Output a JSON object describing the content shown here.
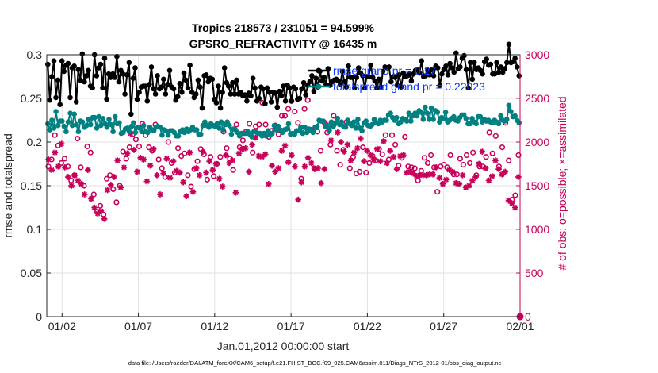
{
  "chart_data": {
    "type": "line",
    "title": "Tropics 218573 / 231051 = 94.599%",
    "subtitle": "GPSRO_REFRACTIVITY @ 16435 m",
    "xlabel": "Jan.01,2012 00:00:00 start",
    "ylabel_left": "rmse and totalspread",
    "ylabel_right": "# of obs: o=possible; ×=assimilated",
    "footer": "data file: /Users/raeder/DAI/ATM_forcXX/CAM6_setup/f.e21.FHIST_BGC.f09_025.CAM6assim.011/Diags_NTrS_2012-01/obs_diag_output.nc",
    "x_ticks": [
      {
        "label": "01/02",
        "value": 1
      },
      {
        "label": "01/07",
        "value": 6
      },
      {
        "label": "01/12",
        "value": 11
      },
      {
        "label": "01/17",
        "value": 16
      },
      {
        "label": "01/22",
        "value": 21
      },
      {
        "label": "01/27",
        "value": 26
      },
      {
        "label": "02/01",
        "value": 31
      }
    ],
    "xlim": [
      0,
      31
    ],
    "y_left_ticks": [
      "0",
      "0.05",
      "0.1",
      "0.15",
      "0.2",
      "0.25",
      "0.3"
    ],
    "y_left_tick_values": [
      0,
      0.05,
      0.1,
      0.15,
      0.2,
      0.25,
      0.3
    ],
    "ylim_left": [
      0,
      0.3
    ],
    "y_right_ticks": [
      "0",
      "500",
      "1000",
      "1500",
      "2000",
      "2500",
      "3000"
    ],
    "y_right_tick_values": [
      0,
      500,
      1000,
      1500,
      2000,
      2500,
      3000
    ],
    "ylim_right": [
      0,
      3000
    ],
    "grid": true,
    "legend": {
      "position": "top-right",
      "entries": [
        "rmse grand pr = 0.27",
        "totalspread grand pr = 0.22023"
      ]
    },
    "colors": {
      "rmse": "#000000",
      "spread": "#008080",
      "obs": "#c8005a",
      "legend_text": "#0a37ff"
    },
    "series": [
      {
        "name": "rmse",
        "axis": "left",
        "values": [
          0.289,
          0.248,
          0.275,
          0.293,
          0.251,
          0.271,
          0.243,
          0.293,
          0.281,
          0.288,
          0.29,
          0.251,
          0.285,
          0.287,
          0.246,
          0.283,
          0.271,
          0.301,
          0.269,
          0.276,
          0.282,
          0.264,
          0.262,
          0.3,
          0.276,
          0.285,
          0.289,
          0.262,
          0.296,
          0.249,
          0.278,
          0.274,
          0.278,
          0.274,
          0.298,
          0.269,
          0.282,
          0.278,
          0.255,
          0.277,
          0.291,
          0.232,
          0.273,
          0.285,
          0.249,
          0.257,
          0.263,
          0.264,
          0.264,
          0.247,
          0.266,
          0.286,
          0.261,
          0.255,
          0.276,
          0.261,
          0.263,
          0.272,
          0.255,
          0.266,
          0.282,
          0.263,
          0.261,
          0.248,
          0.252,
          0.267,
          0.257,
          0.279,
          0.271,
          0.262,
          0.288,
          0.257,
          0.251,
          0.255,
          0.271,
          0.263,
          0.239,
          0.276,
          0.277,
          0.269,
          0.273,
          0.272,
          0.249,
          0.245,
          0.264,
          0.239,
          0.257,
          0.285,
          0.268,
          0.264,
          0.255,
          0.268,
          0.255,
          0.271,
          0.255,
          0.257,
          0.253,
          0.254,
          0.247,
          0.256,
          0.253,
          0.273,
          0.262,
          0.247,
          0.25,
          0.263,
          0.261,
          0.244,
          0.262,
          0.257,
          0.246,
          0.257,
          0.256,
          0.24,
          0.258,
          0.253,
          0.264,
          0.247,
          0.265,
          0.262,
          0.247,
          0.263,
          0.261,
          0.249,
          0.25,
          0.261,
          0.268,
          0.254,
          0.265,
          0.269,
          0.276,
          0.258,
          0.273,
          0.263,
          0.281,
          0.27,
          0.274,
          0.266,
          0.284,
          0.265,
          0.269,
          0.271,
          0.272,
          0.27,
          0.266,
          0.281,
          0.269,
          0.263,
          0.287,
          0.274,
          0.274,
          0.262,
          0.274,
          0.285,
          0.279,
          0.276,
          0.262,
          0.275,
          0.275,
          0.288,
          0.274,
          0.27,
          0.262,
          0.272,
          0.263,
          0.281,
          0.286,
          0.285,
          0.286,
          0.269,
          0.275,
          0.274,
          0.265,
          0.277,
          0.263,
          0.279,
          0.275,
          0.276,
          0.278,
          0.27,
          0.278,
          0.282,
          0.283,
          0.279,
          0.293,
          0.275,
          0.276,
          0.282,
          0.277,
          0.283,
          0.276,
          0.287,
          0.285,
          0.265,
          0.278,
          0.283,
          0.287,
          0.277,
          0.29,
          0.285,
          0.28,
          0.302,
          0.284,
          0.286,
          0.296,
          0.299,
          0.283,
          0.262,
          0.291,
          0.272,
          0.291,
          0.283,
          0.285,
          0.282,
          0.278,
          0.292,
          0.295,
          0.288,
          0.289,
          0.278,
          0.278,
          0.291,
          0.28,
          0.286,
          0.28,
          0.284,
          0.291,
          0.312,
          0.291,
          0.292,
          0.296,
          0.286,
          0.276
        ]
      },
      {
        "name": "totalspread",
        "axis": "left",
        "values": [
          0.221,
          0.214,
          0.225,
          0.216,
          0.235,
          0.219,
          0.224,
          0.224,
          0.218,
          0.212,
          0.223,
          0.233,
          0.219,
          0.232,
          0.22,
          0.212,
          0.224,
          0.223,
          0.217,
          0.219,
          0.226,
          0.22,
          0.228,
          0.228,
          0.216,
          0.229,
          0.219,
          0.227,
          0.221,
          0.217,
          0.226,
          0.22,
          0.212,
          0.229,
          0.221,
          0.222,
          0.21,
          0.211,
          0.215,
          0.216,
          0.212,
          0.218,
          0.222,
          0.211,
          0.217,
          0.216,
          0.212,
          0.219,
          0.212,
          0.211,
          0.217,
          0.214,
          0.213,
          0.217,
          0.218,
          0.217,
          0.208,
          0.214,
          0.213,
          0.208,
          0.213,
          0.213,
          0.211,
          0.207,
          0.207,
          0.212,
          0.214,
          0.211,
          0.215,
          0.212,
          0.214,
          0.217,
          0.214,
          0.214,
          0.209,
          0.209,
          0.219,
          0.223,
          0.219,
          0.217,
          0.221,
          0.219,
          0.218,
          0.221,
          0.216,
          0.223,
          0.214,
          0.22,
          0.223,
          0.219,
          0.209,
          0.215,
          0.214,
          0.211,
          0.207,
          0.21,
          0.21,
          0.21,
          0.212,
          0.209,
          0.206,
          0.212,
          0.212,
          0.21,
          0.21,
          0.207,
          0.21,
          0.207,
          0.213,
          0.208,
          0.21,
          0.219,
          0.214,
          0.218,
          0.214,
          0.211,
          0.214,
          0.215,
          0.221,
          0.209,
          0.21,
          0.209,
          0.213,
          0.213,
          0.217,
          0.21,
          0.217,
          0.211,
          0.215,
          0.213,
          0.211,
          0.217,
          0.218,
          0.225,
          0.224,
          0.224,
          0.218,
          0.219,
          0.213,
          0.223,
          0.218,
          0.222,
          0.227,
          0.22,
          0.223,
          0.218,
          0.217,
          0.225,
          0.221,
          0.219,
          0.223,
          0.216,
          0.226,
          0.216,
          0.213,
          0.222,
          0.224,
          0.219,
          0.218,
          0.22,
          0.226,
          0.222,
          0.221,
          0.225,
          0.223,
          0.225,
          0.225,
          0.231,
          0.233,
          0.228,
          0.225,
          0.228,
          0.221,
          0.223,
          0.227,
          0.226,
          0.224,
          0.233,
          0.224,
          0.23,
          0.233,
          0.23,
          0.236,
          0.234,
          0.226,
          0.24,
          0.233,
          0.226,
          0.239,
          0.226,
          0.236,
          0.234,
          0.223,
          0.228,
          0.227,
          0.234,
          0.223,
          0.225,
          0.227,
          0.229,
          0.225,
          0.224,
          0.228,
          0.231,
          0.231,
          0.227,
          0.221,
          0.221,
          0.227,
          0.223,
          0.221,
          0.229,
          0.229,
          0.223,
          0.226,
          0.224,
          0.225,
          0.223,
          0.222,
          0.225,
          0.223,
          0.221,
          0.23,
          0.225,
          0.224,
          0.226,
          0.242,
          0.235,
          0.229,
          0.23,
          0.225,
          0.222
        ]
      },
      {
        "name": "possible",
        "axis": "right",
        "marker": "o",
        "values": [
          1720,
          1800,
          2080,
          1960,
          1760,
          1810,
          1720,
          1560,
          1620,
          2040,
          1710,
          1500,
          1950,
          1880,
          1400,
          1200,
          1270,
          1170,
          1580,
          1620,
          1460,
          1310,
          1500,
          1890,
          1810,
          1940,
          2090,
          2030,
          1950,
          2210,
          2080,
          1940,
          1900,
          2200,
          1800,
          1700,
          1600,
          2000,
          1760,
          1650,
          1930,
          1840,
          1870,
          1620,
          1490,
          1690,
          1780,
          1920,
          1860,
          1570,
          1830,
          1610,
          1750,
          1830,
          2120,
          1930,
          1810,
          1680,
          2200,
          1940,
          2020,
          2120,
          2210,
          1880,
          2180,
          2200,
          2450,
          2200,
          2060,
          2130,
          2190,
          2090,
          2300,
          2300,
          2380,
          2470,
          2350,
          2220,
          1580,
          2380,
          2480,
          2140,
          1700,
          2120,
          1900,
          2230,
          2110,
          1970,
          2300,
          1900,
          1740,
          1910,
          2230,
          1700,
          1830,
          1640,
          1660,
          1940,
          1650,
          1760,
          1840,
          1790,
          1920,
          1860,
          2080,
          1800,
          2080,
          1970,
          1730,
          1820,
          2060,
          1720,
          1710,
          1700,
          1560,
          1670,
          1820,
          1760,
          1850,
          1710,
          1430,
          1720,
          1740,
          1710,
          1850,
          1630,
          1630,
          1810,
          1740,
          1850,
          1760,
          1880,
          1620,
          1720,
          1720,
          1830,
          2110,
          1870,
          2070,
          1720,
          1940,
          2220,
          1790,
          1340,
          1390,
          1850
        ]
      },
      {
        "name": "assimilated",
        "axis": "right",
        "marker": "x",
        "values": [
          1800,
          1680,
          1880,
          1720,
          1980,
          1710,
          1600,
          1500,
          1620,
          1560,
          1520,
          1400,
          1680,
          1350,
          1250,
          1180,
          1210,
          1120,
          1450,
          1510,
          1600,
          1790,
          1480,
          1710,
          1870,
          2100,
          1910,
          1660,
          1820,
          1800,
          1550,
          1730,
          1920,
          1620,
          1400,
          1640,
          1810,
          1590,
          1780,
          1670,
          1650,
          1540,
          1380,
          1880,
          1430,
          1700,
          1620,
          1890,
          1650,
          1780,
          1680,
          1750,
          1580,
          1490,
          1850,
          1760,
          1790,
          1420,
          1870,
          1920,
          1930,
          1660,
          1970,
          2050,
          1840,
          1830,
          1860,
          1520,
          1730,
          1660,
          1700,
          1900,
          1960,
          1770,
          1850,
          1720,
          1340,
          1540,
          1720,
          1820,
          1760,
          1690,
          1700,
          1530,
          1690,
          2190,
          2020,
          2210,
          2110,
          2000,
          1890,
          1970,
          1790,
          1880,
          1930,
          2040,
          1780,
          1900,
          1850,
          1800,
          1920,
          1780,
          2010,
          1760,
          1900,
          1830,
          1690,
          1840,
          1850,
          1650,
          1660,
          1640,
          1610,
          1620,
          1620,
          1620,
          1630,
          1630,
          1710,
          1590,
          1520,
          1570,
          1680,
          1660,
          1530,
          1520,
          1620,
          1480,
          1500,
          1560,
          1600,
          1750,
          1890,
          1700,
          1560,
          1610,
          1790,
          1690,
          1630,
          1660,
          1330,
          1300,
          1250,
          1600
        ]
      }
    ]
  }
}
